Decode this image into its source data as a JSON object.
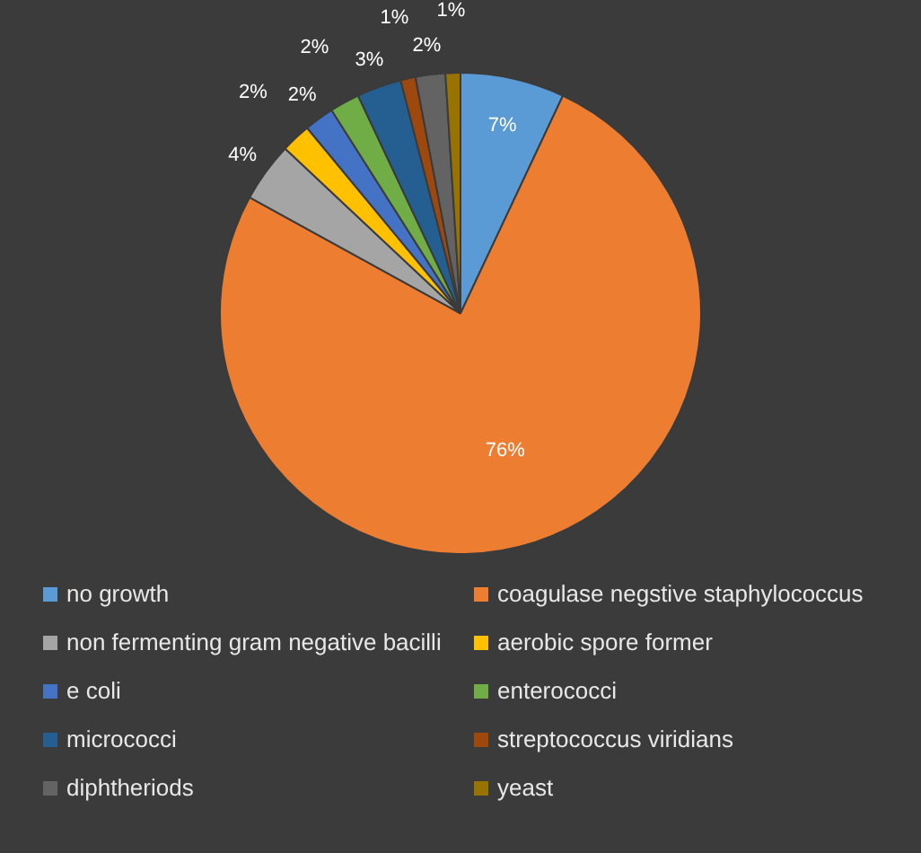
{
  "chart_data": {
    "type": "pie",
    "categories": [
      "no growth",
      "coagulase negstive staphylococcus",
      "non fermenting gram negative bacilli",
      "aerobic spore former",
      "e coli",
      "enterococci",
      "micrococci",
      "streptococcus viridians",
      "diphtheriods",
      "yeast"
    ],
    "values": [
      7,
      76,
      4,
      2,
      2,
      2,
      3,
      1,
      2,
      1
    ],
    "colors": [
      "#5b9bd5",
      "#ed7d31",
      "#a5a5a5",
      "#ffc000",
      "#4472c4",
      "#70ad47",
      "#255e91",
      "#9e480e",
      "#636363",
      "#997300"
    ],
    "value_labels": [
      "7%",
      "76%",
      "4%",
      "2%",
      "2%",
      "2%",
      "3%",
      "1%",
      "2%",
      "1%"
    ],
    "legend": "bottom"
  }
}
